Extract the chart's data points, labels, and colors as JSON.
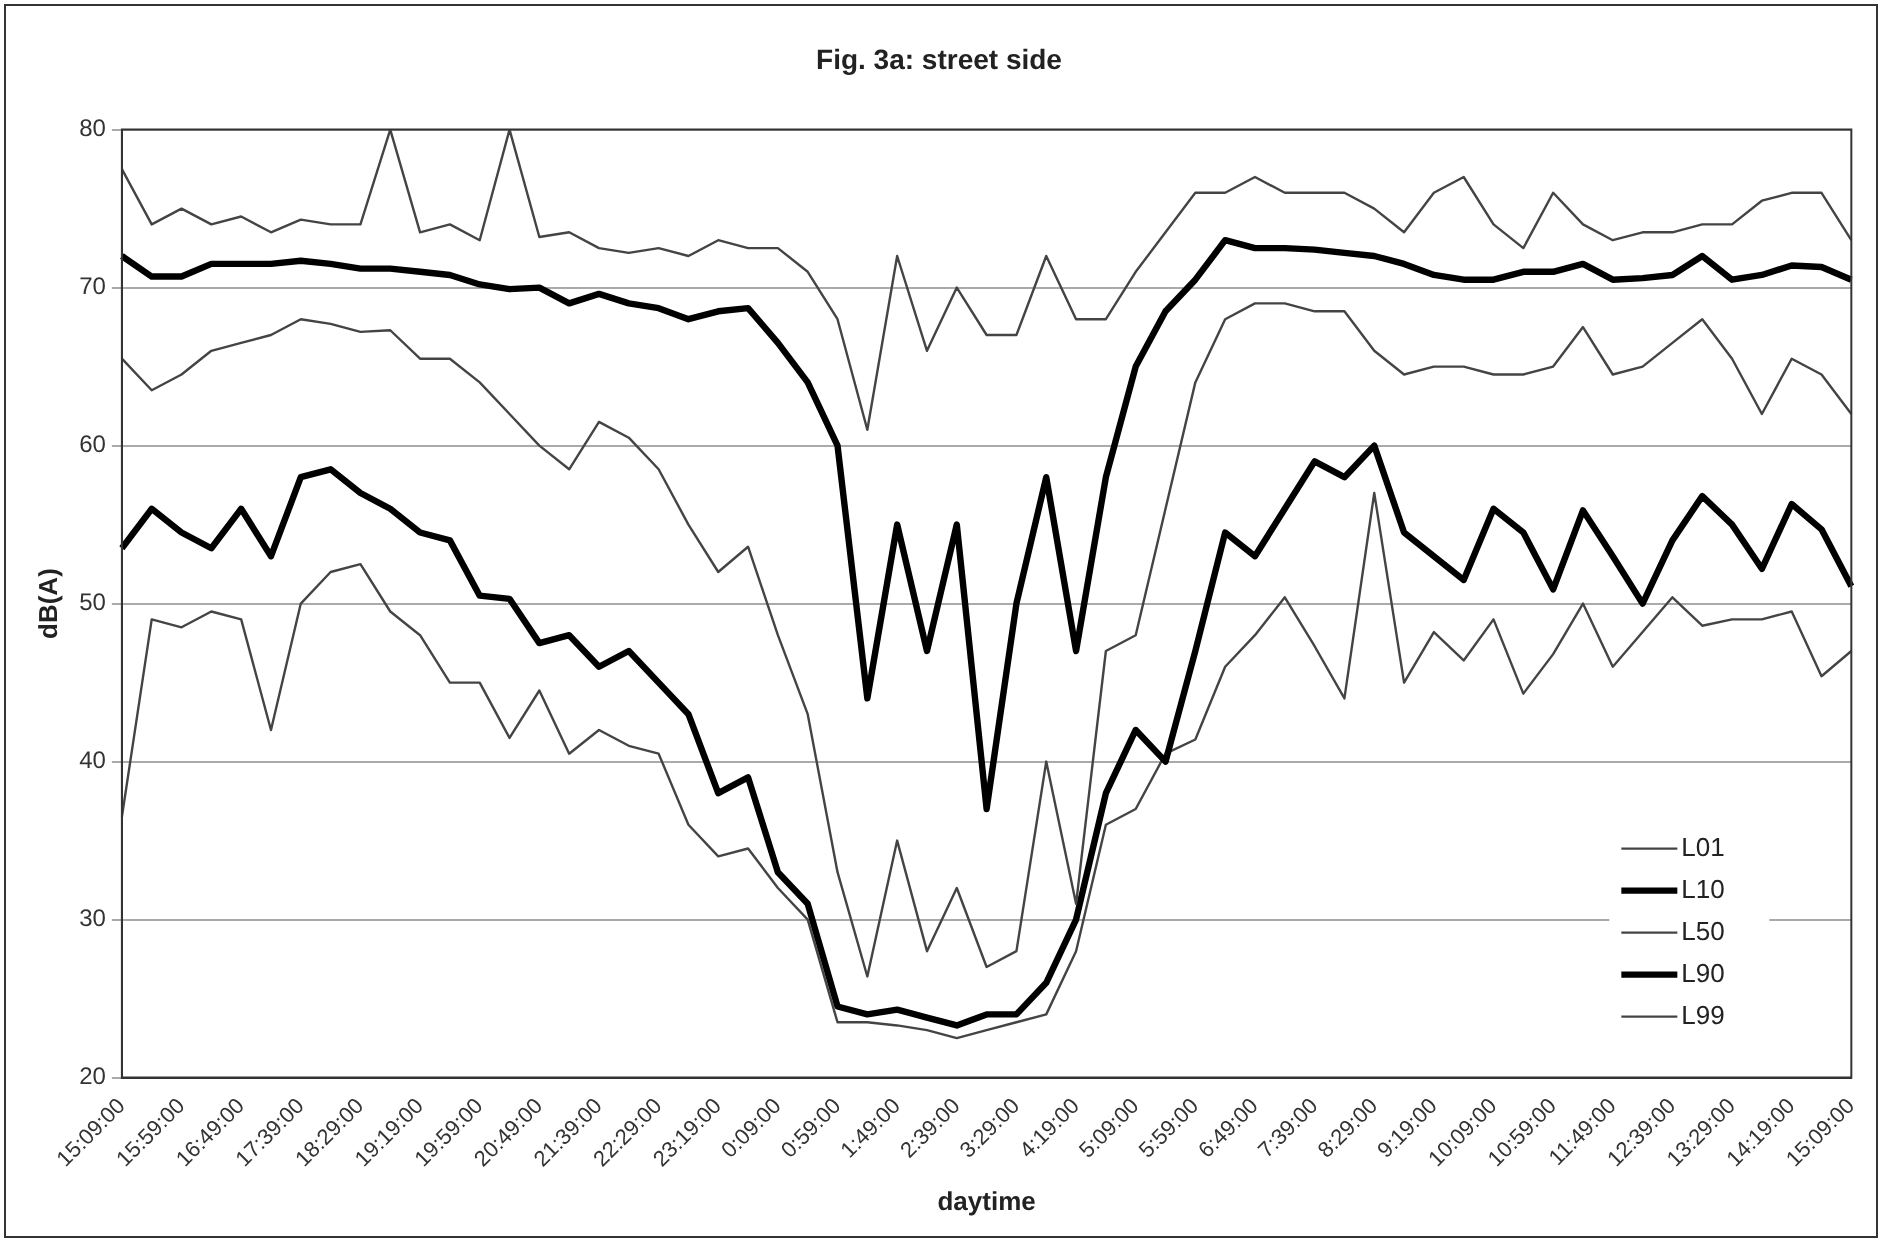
{
  "chart_data": {
    "type": "line",
    "title": "Fig. 3a: street side",
    "xlabel": "daytime",
    "ylabel": "dB(A)",
    "categories": [
      "15:09:00",
      null,
      "15:59:00",
      null,
      "16:49:00",
      null,
      "17:39:00",
      null,
      "18:29:00",
      null,
      "19:19:00",
      null,
      "19:59:00",
      null,
      "20:49:00",
      null,
      "21:39:00",
      null,
      "22:29:00",
      null,
      "23:19:00",
      null,
      "0:09:00",
      null,
      "0:59:00",
      null,
      "1:49:00",
      null,
      "2:39:00",
      null,
      "3:29:00",
      null,
      "4:19:00",
      null,
      "5:09:00",
      null,
      "5:59:00",
      null,
      "6:49:00",
      null,
      "7:39:00",
      null,
      "8:29:00",
      null,
      "9:19:00",
      null,
      "10:09:00",
      null,
      "10:59:00",
      null,
      "11:49:00",
      null,
      "12:39:00",
      null,
      "13:29:00",
      null,
      "14:19:00",
      null,
      "15:09:00"
    ],
    "series": [
      {
        "name": "L01",
        "color": "#444444",
        "values": [
          77.5,
          74,
          75,
          74,
          74.5,
          73.5,
          74.3,
          74,
          74,
          80,
          73.5,
          74,
          73,
          80,
          73.2,
          73.5,
          72.5,
          72.2,
          72.5,
          72,
          73,
          72.5,
          72.5,
          71,
          68,
          61,
          72,
          66,
          70,
          67,
          67,
          72,
          68,
          68,
          71,
          73.5,
          76,
          76,
          77,
          76,
          76,
          76,
          75,
          73.5,
          76,
          77,
          74,
          72.5,
          76,
          74,
          73,
          73.5,
          73.5,
          74,
          74,
          75.5,
          76,
          76,
          73
        ]
      },
      {
        "name": "L10",
        "color": "#000000",
        "values": [
          72,
          70.7,
          70.7,
          71.5,
          71.5,
          71.5,
          71.7,
          71.5,
          71.2,
          71.2,
          71,
          70.8,
          70.2,
          69.9,
          70,
          69,
          69.6,
          69,
          68.7,
          68,
          68.5,
          68.7,
          66.5,
          64,
          60,
          44,
          55,
          47,
          55,
          37,
          50,
          58,
          47,
          58,
          65,
          68.5,
          70.5,
          73,
          72.5,
          72.5,
          72.4,
          72.2,
          72,
          71.5,
          70.8,
          70.5,
          70.5,
          71,
          71,
          71.5,
          70.5,
          70.6,
          70.8,
          72,
          70.5,
          70.8,
          71.4,
          71.3,
          70.5
        ]
      },
      {
        "name": "L50",
        "color": "#444444",
        "values": [
          65.5,
          63.5,
          64.5,
          66,
          66.5,
          67,
          68,
          67.7,
          67.2,
          67.3,
          65.5,
          65.5,
          64,
          62,
          60,
          58.5,
          61.5,
          60.5,
          58.5,
          55,
          52,
          53.6,
          48,
          43,
          33,
          26.4,
          35,
          28,
          32,
          27,
          28,
          40,
          31,
          47,
          48,
          56,
          64,
          68,
          69,
          69,
          68.5,
          68.5,
          66,
          64.5,
          65,
          65,
          64.5,
          64.5,
          65,
          67.5,
          64.5,
          65,
          66.5,
          68,
          65.5,
          62,
          65.5,
          64.5,
          62
        ]
      },
      {
        "name": "L90",
        "color": "#000000",
        "values": [
          53.5,
          56,
          54.5,
          53.5,
          56,
          53,
          58,
          58.5,
          57,
          56,
          54.5,
          54,
          50.5,
          50.3,
          47.5,
          48,
          46,
          47,
          45,
          43,
          38,
          39,
          33,
          31,
          24.5,
          24,
          24.3,
          23.8,
          23.3,
          24,
          24,
          26,
          30,
          38,
          42,
          40,
          47,
          54.5,
          53,
          56,
          59,
          58,
          60,
          54.5,
          53,
          51.5,
          56,
          54.5,
          50.9,
          55.9,
          53,
          50,
          54,
          56.8,
          55,
          52.2,
          56.3,
          54.7,
          51.1
        ]
      },
      {
        "name": "L99",
        "color": "#444444",
        "values": [
          36.5,
          49,
          48.5,
          49.5,
          49,
          42,
          50,
          52,
          52.5,
          49.5,
          48,
          45,
          45,
          41.5,
          44.5,
          40.5,
          42,
          41,
          40.5,
          36,
          34,
          34.5,
          32,
          30,
          23.5,
          23.5,
          23.3,
          23,
          22.5,
          23,
          23.5,
          24,
          28,
          36,
          37,
          40.5,
          41.4,
          46,
          48,
          50.4,
          47.3,
          44,
          57,
          45,
          48.2,
          46.4,
          49,
          44.3,
          46.8,
          50,
          46,
          48.2,
          50.4,
          48.6,
          49,
          49,
          49.5,
          45.4,
          47
        ]
      }
    ],
    "ylim": [
      20,
      80
    ],
    "yticks": [
      20,
      30,
      40,
      50,
      60,
      70,
      80
    ],
    "grid": "y",
    "legend": "bottom right",
    "marker": "none",
    "line_style": "solid"
  }
}
